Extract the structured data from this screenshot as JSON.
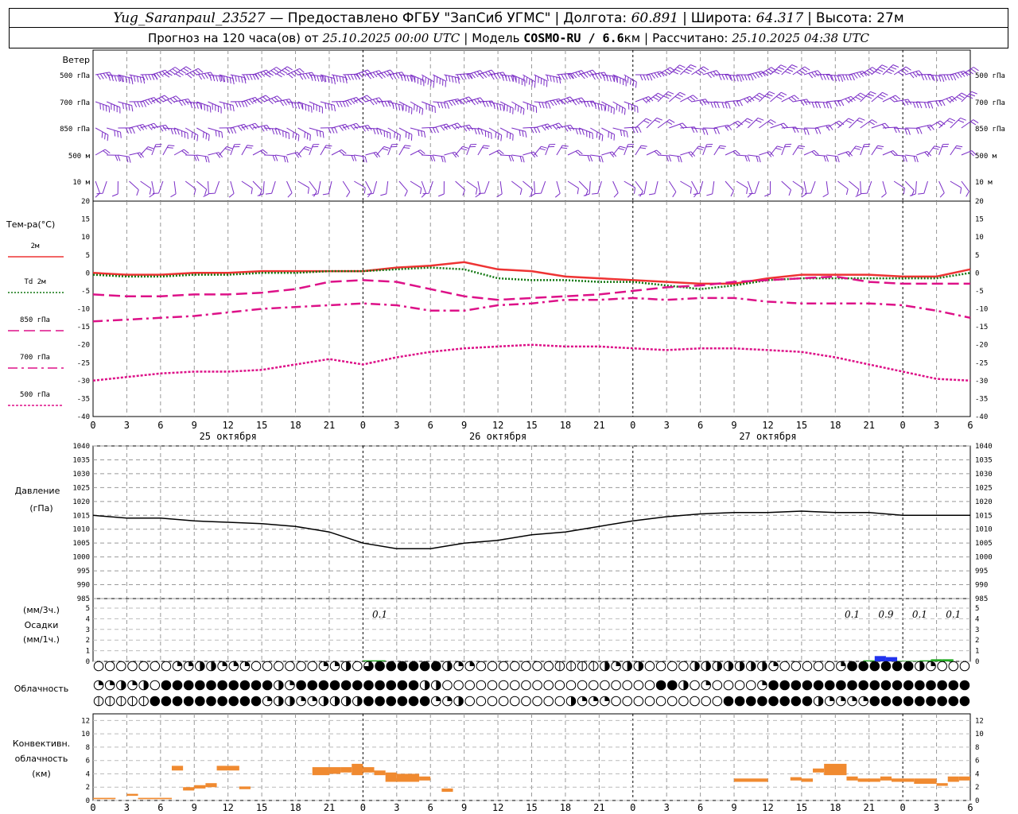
{
  "header": {
    "station": "Yug_Saranpaul_23527",
    "provider": "— Предоставлено ФГБУ \"ЗапСиб УГМС\"",
    "lon_label": "Долгота:",
    "lon_value": "60.891",
    "lat_label": "Широта:",
    "lat_value": "64.317",
    "alt_label": "Высота:",
    "alt_value": "27м",
    "forecast_prefix": "Прогноз на 120 часа(ов) от",
    "forecast_time": "25.10.2025 00:00 UTC",
    "model_label": "Модель",
    "model_name": "COSMO-RU / 6.6",
    "model_unit": "км",
    "calc_label": "Рассчитано:",
    "calc_time": "25.10.2025 04:38 UTC"
  },
  "wind_panel": {
    "title": "Ветер",
    "levels": [
      "500 гПа",
      "700 гПа",
      "850 гПа",
      "500 м",
      "10 м"
    ],
    "color": "#7a2cc6"
  },
  "temperature_panel": {
    "title": "Тем-ра(°C)",
    "legend": [
      {
        "label": "2м",
        "color": "#ee3333",
        "style": "solid"
      },
      {
        "label_prefix": "Td",
        "label": "2м",
        "color": "#117711",
        "style": "dotted"
      },
      {
        "label": "850 гПа",
        "color": "#dd1188",
        "style": "dash"
      },
      {
        "label": "700 гПа",
        "color": "#dd1188",
        "style": "dashdot"
      },
      {
        "label": "500 гПа",
        "color": "#dd1188",
        "style": "dot"
      }
    ],
    "yticks": [
      "20",
      "15",
      "10",
      "5",
      "0",
      "-5",
      "-10",
      "-15",
      "-20",
      "-25",
      "-30",
      "-35",
      "-40"
    ]
  },
  "time_axis": {
    "hours": [
      "0",
      "3",
      "6",
      "9",
      "12",
      "15",
      "18",
      "21",
      "0",
      "3",
      "6",
      "9",
      "12",
      "15",
      "18",
      "21",
      "0",
      "3",
      "6",
      "9",
      "12",
      "15",
      "18",
      "21",
      "0",
      "3",
      "6"
    ],
    "dates": [
      "25 октября",
      "26 октября",
      "27 октября"
    ]
  },
  "pressure_panel": {
    "title": "Давление",
    "unit": "(гПа)",
    "yticks": [
      "1040",
      "1035",
      "1030",
      "1025",
      "1020",
      "1015",
      "1010",
      "1005",
      "1000",
      "995",
      "990",
      "985"
    ]
  },
  "precip_panel": {
    "title_unit_3h": "(мм/3ч.)",
    "title": "Осадки",
    "title_unit_1h": "(мм/1ч.)",
    "yticks": [
      "5",
      "4",
      "3",
      "2",
      "1",
      "0"
    ],
    "amounts_3h": [
      "0.1",
      "0.1",
      "0.9",
      "0.1",
      "0.1"
    ],
    "colors": {
      "rain": "#2233ee",
      "light": "#22aa22"
    }
  },
  "cloud_panel": {
    "title": "Облачность",
    "rows_levels": [
      "high",
      "mid",
      "low"
    ]
  },
  "convective_panel": {
    "title_1": "Конвективн.",
    "title_2": "облачность",
    "unit": "(км)",
    "yticks": [
      "12",
      "10",
      "8",
      "6",
      "4",
      "2",
      "0"
    ],
    "color": "#f08a30"
  },
  "chart_data": [
    {
      "type": "line",
      "title": "Тем-ра(°C)",
      "x_hours": [
        0,
        3,
        6,
        9,
        12,
        15,
        18,
        21,
        24,
        27,
        30,
        33,
        36,
        39,
        42,
        45,
        48,
        51,
        54,
        57,
        60,
        63,
        66,
        69,
        72,
        75,
        78
      ],
      "ylim": [
        -40,
        20
      ],
      "series": [
        {
          "name": "2м",
          "values": [
            0,
            -0.5,
            -0.5,
            0,
            0,
            0.5,
            0.5,
            0.5,
            0.5,
            1.5,
            2,
            3,
            1,
            0.5,
            -1,
            -1.5,
            -2,
            -2.5,
            -3,
            -3,
            -1.5,
            -0.5,
            -0.5,
            -0.5,
            -1,
            -1,
            1
          ]
        },
        {
          "name": "Td 2м",
          "values": [
            -0.5,
            -1,
            -1,
            -0.5,
            -0.5,
            0,
            0,
            0.5,
            0.5,
            1,
            1.5,
            1,
            -1.5,
            -2,
            -2,
            -2.5,
            -2.5,
            -3.5,
            -4.5,
            -3.5,
            -2,
            -1.5,
            -1.5,
            -1.5,
            -1.5,
            -1.5,
            0
          ]
        },
        {
          "name": "850 гПа",
          "values": [
            -6,
            -6.5,
            -6.5,
            -6,
            -6,
            -5.5,
            -4.5,
            -2.5,
            -2,
            -2.5,
            -4.5,
            -6.5,
            -7.5,
            -7,
            -6.5,
            -6,
            -5,
            -4,
            -3.5,
            -2.5,
            -2,
            -1.5,
            -1,
            -2.5,
            -3,
            -3,
            -3
          ]
        },
        {
          "name": "700 гПа",
          "values": [
            -13.5,
            -13,
            -12.5,
            -12,
            -11,
            -10,
            -9.5,
            -9,
            -8.5,
            -9,
            -10.5,
            -10.5,
            -9,
            -8.5,
            -7.5,
            -7.5,
            -7,
            -7.5,
            -7,
            -7,
            -8,
            -8.5,
            -8.5,
            -8.5,
            -9,
            -10.5,
            -12.5
          ]
        },
        {
          "name": "500 гПа",
          "values": [
            -30,
            -29,
            -28,
            -27.5,
            -27.5,
            -27,
            -25.5,
            -24,
            -25.5,
            -23.5,
            -22,
            -21,
            -20.5,
            -20,
            -20.5,
            -20.5,
            -21,
            -21.5,
            -21,
            -21,
            -21.5,
            -22,
            -23.5,
            -25.5,
            -27.5,
            -29.5,
            -30
          ]
        }
      ]
    },
    {
      "type": "line",
      "title": "Давление",
      "x_hours": [
        0,
        3,
        6,
        9,
        12,
        15,
        18,
        21,
        24,
        27,
        30,
        33,
        36,
        39,
        42,
        45,
        48,
        51,
        54,
        57,
        60,
        63,
        66,
        69,
        72,
        75,
        78
      ],
      "ylim": [
        985,
        1040
      ],
      "series": [
        {
          "name": "Давление",
          "values": [
            1015,
            1014,
            1014,
            1013,
            1012.5,
            1012,
            1011,
            1009,
            1005,
            1003,
            1003,
            1005,
            1006,
            1008,
            1009,
            1011,
            1013,
            1014.5,
            1015.5,
            1016,
            1016,
            1016.5,
            1016,
            1016,
            1015,
            1015,
            1015
          ]
        }
      ]
    },
    {
      "type": "bar",
      "title": "Осадки",
      "x_hours": [
        24.5,
        25.5,
        69,
        70,
        71,
        72,
        73,
        74,
        75,
        76
      ],
      "ylim": [
        0,
        5
      ],
      "values": [
        0.1,
        0.1,
        0.1,
        0.5,
        0.4,
        0.05,
        0.05,
        0.1,
        0.2,
        0.2
      ]
    },
    {
      "type": "bar",
      "title": "Конвективн. облачность",
      "ylim": [
        0,
        13
      ],
      "bars": [
        {
          "x": 0.5,
          "w": 2,
          "base": 0.2,
          "top": 0.4
        },
        {
          "x": 3.5,
          "w": 1,
          "base": 0.7,
          "top": 1.0
        },
        {
          "x": 4.5,
          "w": 3,
          "base": 0.2,
          "top": 0.4
        },
        {
          "x": 7.5,
          "w": 1,
          "base": 4.5,
          "top": 5.2
        },
        {
          "x": 8.5,
          "w": 1,
          "base": 1.5,
          "top": 2.0
        },
        {
          "x": 9.5,
          "w": 1,
          "base": 1.8,
          "top": 2.3
        },
        {
          "x": 10.5,
          "w": 1,
          "base": 2.0,
          "top": 2.6
        },
        {
          "x": 11.5,
          "w": 2,
          "base": 4.5,
          "top": 5.2
        },
        {
          "x": 13.5,
          "w": 1,
          "base": 1.7,
          "top": 2.1
        },
        {
          "x": 20,
          "w": 1.5,
          "base": 3.8,
          "top": 5.0
        },
        {
          "x": 21.5,
          "w": 1,
          "base": 4.0,
          "top": 5.0
        },
        {
          "x": 22.5,
          "w": 1,
          "base": 4.2,
          "top": 5.0
        },
        {
          "x": 23.5,
          "w": 1,
          "base": 3.8,
          "top": 5.5
        },
        {
          "x": 24.5,
          "w": 1,
          "base": 4.2,
          "top": 5.0
        },
        {
          "x": 25.5,
          "w": 1,
          "base": 3.8,
          "top": 4.5
        },
        {
          "x": 26.5,
          "w": 1,
          "base": 2.8,
          "top": 4.2
        },
        {
          "x": 27.5,
          "w": 2,
          "base": 2.8,
          "top": 4.0
        },
        {
          "x": 29.5,
          "w": 1,
          "base": 3.0,
          "top": 3.6
        },
        {
          "x": 31.5,
          "w": 1,
          "base": 1.3,
          "top": 1.8
        },
        {
          "x": 57.5,
          "w": 3,
          "base": 2.8,
          "top": 3.3
        },
        {
          "x": 62.5,
          "w": 1,
          "base": 3.0,
          "top": 3.5
        },
        {
          "x": 63.5,
          "w": 1,
          "base": 2.8,
          "top": 3.3
        },
        {
          "x": 64.5,
          "w": 1,
          "base": 4.2,
          "top": 4.8
        },
        {
          "x": 65.5,
          "w": 2,
          "base": 3.8,
          "top": 5.5
        },
        {
          "x": 67.5,
          "w": 1,
          "base": 3.0,
          "top": 3.6
        },
        {
          "x": 68.5,
          "w": 2,
          "base": 2.8,
          "top": 3.3
        },
        {
          "x": 70.5,
          "w": 1,
          "base": 3.0,
          "top": 3.6
        },
        {
          "x": 71.5,
          "w": 2,
          "base": 2.8,
          "top": 3.3
        },
        {
          "x": 73.5,
          "w": 2,
          "base": 2.5,
          "top": 3.3
        },
        {
          "x": 75.5,
          "w": 1,
          "base": 2.2,
          "top": 2.6
        },
        {
          "x": 76.5,
          "w": 1,
          "base": 2.8,
          "top": 3.6
        },
        {
          "x": 77.5,
          "w": 1,
          "base": 3.0,
          "top": 3.6
        }
      ]
    }
  ]
}
